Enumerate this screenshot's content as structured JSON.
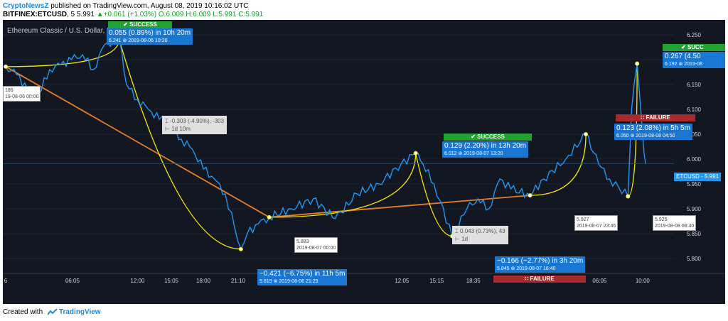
{
  "header": {
    "brand": "CryptoNewsZ",
    "published": " published on TradingView.com, August 08, 2019 10:16:02 UTC",
    "symbol": "BITFINEX:ETCUSD",
    "interval": ", 5",
    "last": "5.991",
    "change": "+0.061 (+1.03%)",
    "ohlc": "O:6.009 H:6.009 L:5.991 C:5.991"
  },
  "footer": {
    "created": "Created with",
    "brand": "TradingView"
  },
  "colors": {
    "background": "#131722",
    "price_line": "#2196f3",
    "trend_line": "#e67e22",
    "curve": "#f5eb00",
    "success": "#1fa22f",
    "failure": "#a92a2a",
    "label": "#1976d2"
  },
  "chart_data": {
    "type": "line",
    "title": "Ethereum Classic / U.S. Dollar, 5, BITFINEX",
    "series": [
      {
        "name": "ETCUSD",
        "x": [
          "2019-08-06 00:00",
          "2019-08-06 01:00",
          "2019-08-06 02:00",
          "2019-08-06 03:00",
          "2019-08-06 04:00",
          "2019-08-06 05:00",
          "2019-08-06 06:00",
          "2019-08-06 07:00",
          "2019-08-06 08:00",
          "2019-08-06 09:00",
          "2019-08-06 10:20",
          "2019-08-06 11:00",
          "2019-08-06 12:00",
          "2019-08-06 13:00",
          "2019-08-06 14:00",
          "2019-08-06 15:00",
          "2019-08-06 16:00",
          "2019-08-06 17:00",
          "2019-08-06 18:00",
          "2019-08-06 19:00",
          "2019-08-06 20:00",
          "2019-08-06 21:25",
          "2019-08-06 22:00",
          "2019-08-06 23:00",
          "2019-08-07 00:00",
          "2019-08-07 02:00",
          "2019-08-07 04:00",
          "2019-08-07 06:00",
          "2019-08-07 08:00",
          "2019-08-07 10:00",
          "2019-08-07 12:00",
          "2019-08-07 13:20",
          "2019-08-07 14:00",
          "2019-08-07 15:00",
          "2019-08-07 16:40",
          "2019-08-07 18:00",
          "2019-08-07 19:00",
          "2019-08-07 20:00",
          "2019-08-07 21:00",
          "2019-08-07 22:00",
          "2019-08-07 23:45",
          "2019-08-08 01:00",
          "2019-08-08 03:00",
          "2019-08-08 04:50",
          "2019-08-08 06:00",
          "2019-08-08 07:00",
          "2019-08-08 08:40",
          "2019-08-08 09:00",
          "2019-08-08 09:30",
          "2019-08-08 10:00",
          "2019-08-08 10:16"
        ],
        "values": [
          6.186,
          6.17,
          6.14,
          6.13,
          6.18,
          6.19,
          6.2,
          6.21,
          6.18,
          6.23,
          6.241,
          6.15,
          6.12,
          6.1,
          6.08,
          6.07,
          6.04,
          6.02,
          5.98,
          5.96,
          5.93,
          5.819,
          5.85,
          5.87,
          5.883,
          5.9,
          5.92,
          5.88,
          5.93,
          5.95,
          5.99,
          6.012,
          5.99,
          5.95,
          5.845,
          5.9,
          5.92,
          5.9,
          5.96,
          5.94,
          5.927,
          5.96,
          6.0,
          6.05,
          5.99,
          5.96,
          5.925,
          6.1,
          6.192,
          6.05,
          5.991
        ]
      }
    ],
    "x_ticks": [
      "6",
      "06:05",
      "12:00",
      "15:05",
      "18:00",
      "21:10",
      "7",
      "06:15",
      "12:05",
      "15:15",
      "18:35",
      "8",
      "06:05",
      "10:00"
    ],
    "y_ticks": [
      "6.250",
      "6.200",
      "6.150",
      "6.100",
      "6.050",
      "6.000",
      "5.950",
      "5.900",
      "5.850",
      "5.800"
    ],
    "ylim": [
      5.77,
      6.28
    ],
    "last_price_label": "ETCUSD",
    "last_price": "5.991",
    "trend_line": {
      "points": [
        [
          "2019-08-06 00:00",
          6.186
        ],
        [
          "2019-08-07 00:00",
          5.883
        ],
        [
          "2019-08-07 23:45",
          5.927
        ]
      ],
      "labels": [
        "-0.303 (-4.90%), -303",
        "1d 10m",
        "0.043 (0.73%), 43",
        "1d"
      ]
    },
    "annotations": [
      {
        "tag": "SUCCESS",
        "line1": "0.055 (0.89%) in 10h 20m",
        "line2": "6.241 ⊛ 2019-08-06 10:20"
      },
      {
        "tag": "",
        "line1": "−0.421 (−6.75%) in 11h 5m",
        "line2": "5.819 ⊛ 2019-08-06 21:25"
      },
      {
        "tag": "SUCCESS",
        "line1": "0.129 (2.20%) in 13h 20m",
        "line2": "6.012 ⊛ 2019-08-07 13:20"
      },
      {
        "tag": "FAILURE",
        "line1": "−0.166 (−2.77%) in 3h 20m",
        "line2": "5.845 ⊛ 2019-08-07 16:40"
      },
      {
        "tag": "FAILURE",
        "line1": "0.123 (2.08%) in 5h 5m",
        "line2": "6.050 ⊛ 2019-08-08 04:50"
      },
      {
        "tag": "SUCC",
        "line1": "0.267 (4.50",
        "line2": "6.192 ⊛ 2019-08"
      }
    ],
    "point_labels": [
      {
        "value": "186",
        "time": "19-08-06 00:00"
      },
      {
        "value": "5.883",
        "time": "2019-08-07 00:00"
      },
      {
        "value": "5.927",
        "time": "2019-08-07 23:45"
      },
      {
        "value": "5.925",
        "time": "2019-08-08 08:40"
      }
    ]
  }
}
